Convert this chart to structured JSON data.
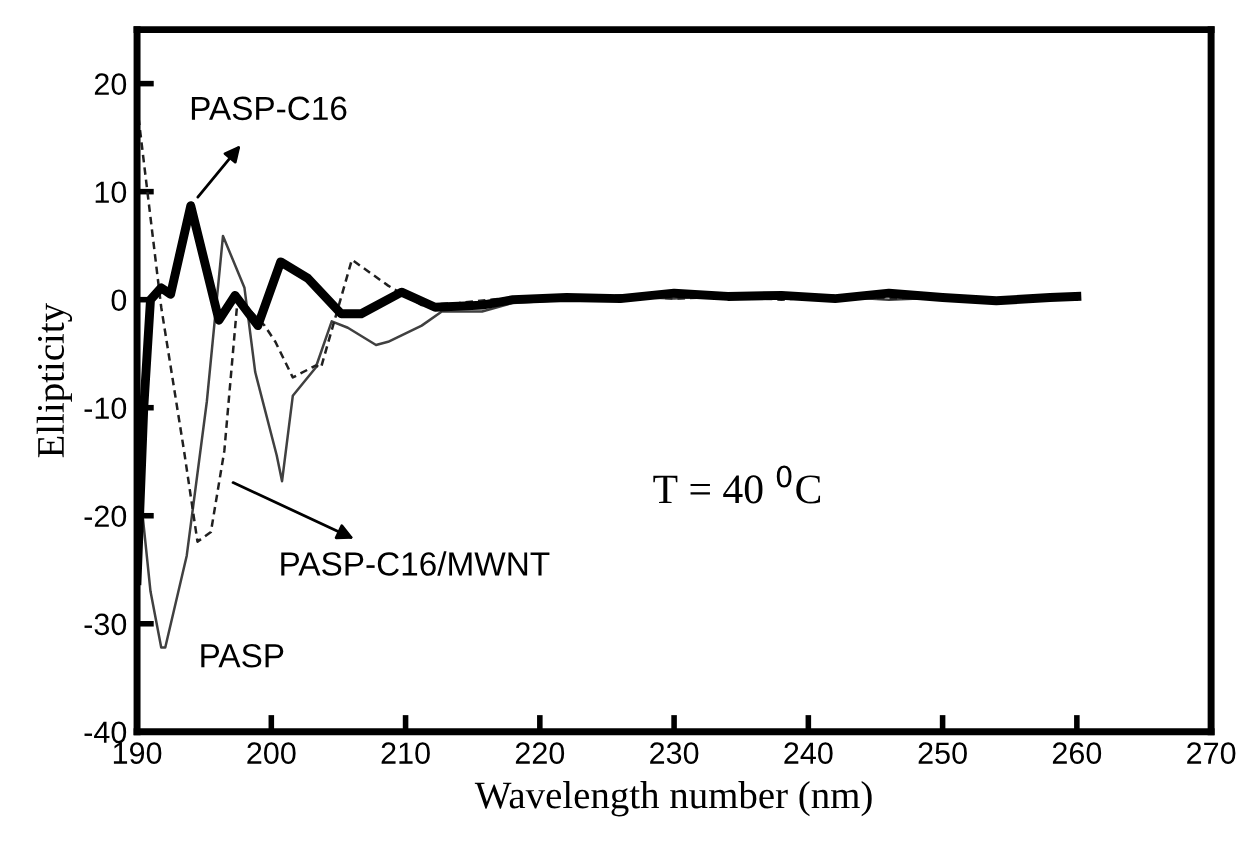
{
  "chart_data": {
    "type": "line",
    "xlabel": "Wavelength number (nm)",
    "ylabel": "Ellipticity",
    "xlim": [
      190,
      270
    ],
    "xticks": [
      190,
      200,
      210,
      220,
      230,
      240,
      250,
      260,
      270
    ],
    "ylim": [
      -40,
      25
    ],
    "yticks": [
      -40,
      -30,
      -20,
      -10,
      0,
      10,
      20
    ],
    "grid": false,
    "legend": false,
    "marker": "none",
    "series": [
      {
        "color": "#404040",
        "line_style": "solid",
        "x": [
          190,
          191,
          191.8,
          192.1,
          193.7,
          195.2,
          196.4,
          198,
          198.8,
          200.4,
          200.8,
          201.6,
          203.3,
          204.5,
          205.7,
          207.8,
          208.7,
          209.7,
          211.2,
          212.7,
          215.7,
          218,
          222,
          226,
          230,
          234,
          238,
          242,
          246,
          250,
          254,
          258,
          260
        ],
        "values": [
          -15,
          -27,
          -32.2,
          -32.2,
          -23.7,
          -9.4,
          5.9,
          1.1,
          -6.7,
          -14.4,
          -16.8,
          -8.9,
          -6.3,
          -2,
          -2.6,
          -4.2,
          -3.9,
          -3.3,
          -2.4,
          -1.1,
          -1.1,
          -0.3,
          0,
          0.3,
          0.1,
          0.4,
          0.1,
          0.3,
          0,
          0.2,
          -0.1,
          0.1,
          0
        ]
      },
      {
        "color": "#202020",
        "line_style": "dashed",
        "x": [
          190,
          191.8,
          193.5,
          194.5,
          195.5,
          196.5,
          197.5,
          199.5,
          200.3,
          201.6,
          203.3,
          203.7,
          206,
          208.7,
          211.2,
          214,
          218,
          222,
          226,
          230,
          234,
          238,
          242,
          246,
          250,
          254,
          258,
          260
        ],
        "values": [
          18,
          -0.7,
          -14,
          -22.4,
          -21.5,
          -14,
          0.2,
          -2.4,
          -3.9,
          -7.2,
          -6.1,
          -6.3,
          3.7,
          1.3,
          -0.5,
          -0.3,
          0.2,
          0,
          0.4,
          0.1,
          0.3,
          0,
          0.4,
          0.1,
          0.2,
          -0.1,
          0.2,
          0.1
        ]
      },
      {
        "color": "#000000",
        "line_style": "solid",
        "x": [
          190,
          190.5,
          191,
          191.8,
          192.5,
          194,
          196.1,
          197.3,
          199,
          200.7,
          202.7,
          205.2,
          206.7,
          209.7,
          212.2,
          215.7,
          218,
          222,
          226,
          230,
          234,
          238,
          242,
          246,
          250,
          254,
          258,
          260
        ],
        "values": [
          -26,
          -10,
          0,
          1.1,
          0.5,
          8.7,
          -1.9,
          0.4,
          -2.4,
          3.5,
          2,
          -1.3,
          -1.3,
          0.7,
          -0.7,
          -0.5,
          0,
          0.2,
          0.1,
          0.6,
          0.3,
          0.4,
          0.1,
          0.6,
          0.2,
          -0.1,
          0.2,
          0.3
        ]
      }
    ],
    "annotations": [
      {
        "text": "PASP-C16",
        "x": 194,
        "y": 8.7
      },
      {
        "text": "PASP-C16/MWNT",
        "x": 196.4,
        "y": -16.5
      },
      {
        "text": "PASP",
        "x": 192.1,
        "y": -32.2
      },
      "T = 40 $^{0}$C"
    ]
  }
}
